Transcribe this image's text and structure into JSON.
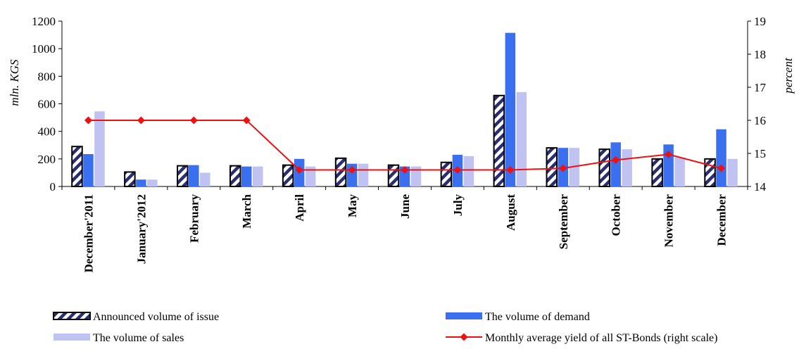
{
  "chart_data": {
    "type": "bar",
    "categories": [
      "December'2011",
      "January'2012",
      "February",
      "March",
      "April",
      "May",
      "June",
      "July",
      "August",
      "September",
      "October",
      "November",
      "December"
    ],
    "series": [
      {
        "name": "Announced volume of issue",
        "type": "bar",
        "axis": "left",
        "pattern": "hatched",
        "color": "#2a2e6e",
        "values": [
          290,
          105,
          150,
          150,
          155,
          205,
          155,
          175,
          660,
          280,
          270,
          200,
          200
        ]
      },
      {
        "name": "The volume of demand",
        "type": "bar",
        "axis": "left",
        "color": "#3a6ff0",
        "values": [
          235,
          50,
          155,
          145,
          200,
          165,
          145,
          230,
          1115,
          280,
          320,
          305,
          415
        ]
      },
      {
        "name": "The volume of sales",
        "type": "bar",
        "axis": "left",
        "color": "#c0c2f2",
        "values": [
          545,
          50,
          100,
          145,
          145,
          165,
          145,
          220,
          685,
          280,
          270,
          210,
          200
        ]
      },
      {
        "name": "Monthly average yield of all ST-Bonds (right scale)",
        "type": "line",
        "axis": "right",
        "color": "#ee1111",
        "values": [
          16.0,
          16.0,
          16.0,
          16.0,
          14.5,
          14.5,
          14.5,
          14.5,
          14.5,
          14.55,
          14.8,
          14.97,
          14.55
        ]
      }
    ],
    "y_left": {
      "label": "mln. KGS",
      "min": 0,
      "max": 1200,
      "ticks": [
        0,
        200,
        400,
        600,
        800,
        1000,
        1200
      ]
    },
    "y_right": {
      "label": "percent",
      "min": 14,
      "max": 19,
      "ticks": [
        14,
        15,
        16,
        17,
        18,
        19
      ]
    },
    "grid": false,
    "legend_position": "bottom"
  }
}
